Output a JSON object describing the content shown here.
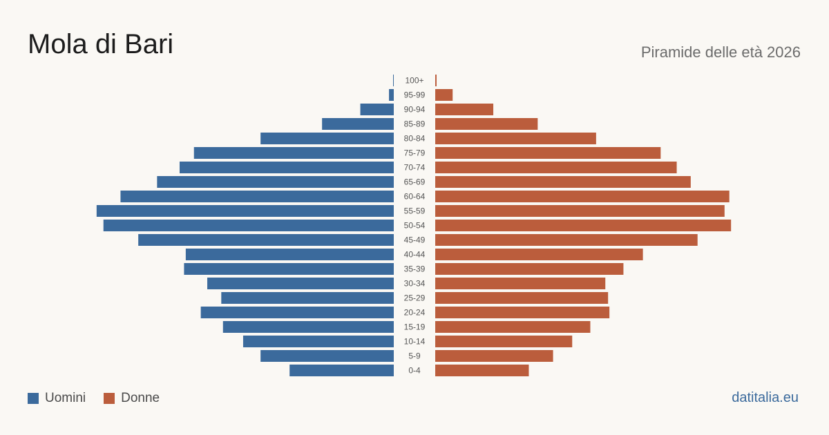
{
  "header": {
    "title": "Mola di Bari",
    "subtitle": "Piramide delle età 2026"
  },
  "legend": [
    {
      "label": "Uomini",
      "color": "#3b6a9c"
    },
    {
      "label": "Donne",
      "color": "#bb5d3c"
    }
  ],
  "brand": "datitalia.eu",
  "chart_data": {
    "type": "bar",
    "orientation": "horizontal-diverging",
    "categories": [
      "100+",
      "95-99",
      "90-94",
      "85-89",
      "80-84",
      "75-79",
      "70-74",
      "65-69",
      "60-64",
      "55-59",
      "50-54",
      "45-49",
      "40-44",
      "35-39",
      "30-34",
      "25-29",
      "20-24",
      "15-19",
      "10-14",
      "5-9",
      "0-4"
    ],
    "series": [
      {
        "name": "Uomini",
        "color": "#3b6a9c",
        "values": [
          2,
          14,
          98,
          210,
          390,
          585,
          627,
          693,
          800,
          870,
          850,
          748,
          609,
          614,
          546,
          505,
          565,
          500,
          441,
          390,
          305
        ]
      },
      {
        "name": "Donne",
        "color": "#bb5d3c",
        "values": [
          4,
          51,
          170,
          300,
          471,
          660,
          707,
          748,
          861,
          847,
          866,
          768,
          608,
          551,
          498,
          506,
          510,
          454,
          401,
          345,
          274
        ]
      }
    ],
    "xlim": [
      0,
      900
    ],
    "grid": false,
    "legend_position": "bottom-left"
  }
}
